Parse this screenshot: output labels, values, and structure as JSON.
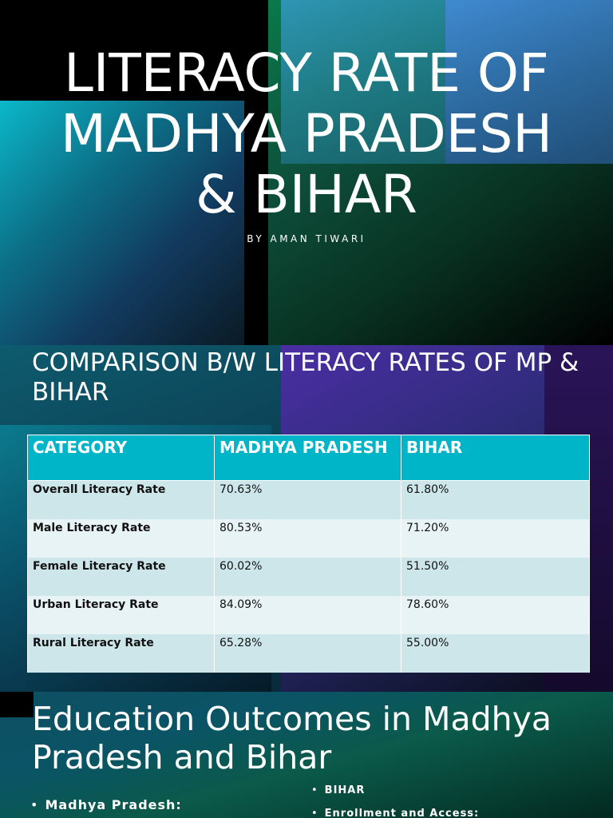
{
  "slide1": {
    "title_lines": [
      "LITERACY RATE OF",
      "MADHYA PRADESH",
      "& BIHAR"
    ],
    "subtitle": "BY AMAN TIWARI"
  },
  "slide2": {
    "title": "COMPARISON B/W LITERACY RATES OF MP & BIHAR",
    "table": {
      "headers": [
        "CATEGORY",
        "MADHYA PRADESH",
        "BIHAR"
      ],
      "rows": [
        [
          "Overall Literacy Rate",
          "70.63%",
          "61.80%"
        ],
        [
          "Male Literacy Rate",
          "80.53%",
          "71.20%"
        ],
        [
          "Female Literacy Rate",
          "60.02%",
          "51.50%"
        ],
        [
          "Urban Literacy Rate",
          "84.09%",
          "78.60%"
        ],
        [
          "Rural Literacy Rate",
          "65.28%",
          "55.00%"
        ]
      ]
    }
  },
  "slide3": {
    "title": "Education Outcomes in Madhya Pradesh and Bihar",
    "bullets_left": [
      "Madhya Pradesh:"
    ],
    "bullets_right": [
      "BIHAR",
      "Enrollment and Access:"
    ]
  },
  "colors": {
    "table_header": "#00b5c8",
    "row_odd": "#cde6ea",
    "row_even": "#e8f3f5"
  }
}
